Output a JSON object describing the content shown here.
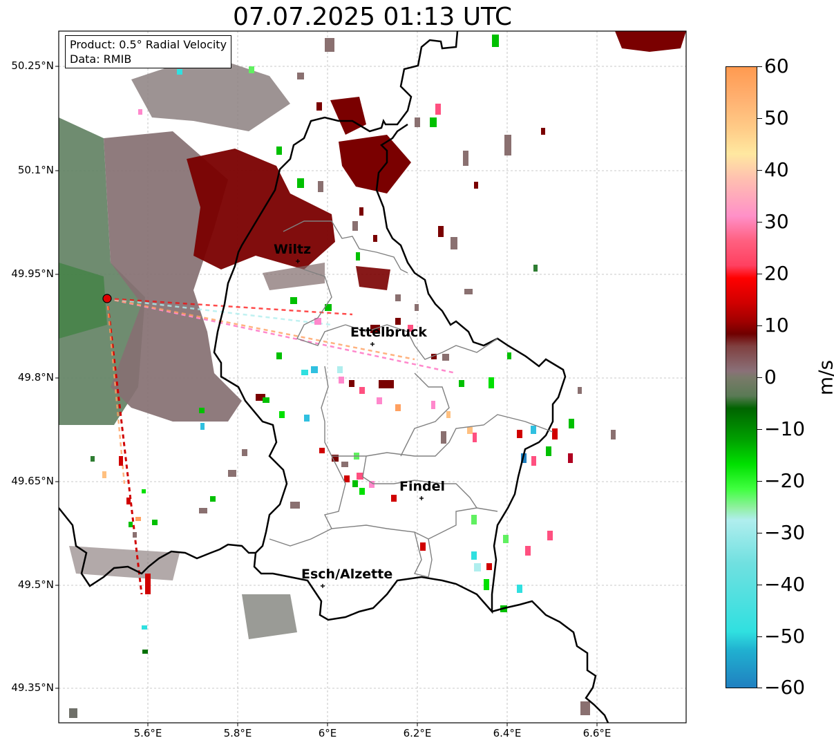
{
  "title": "07.07.2025 01:13 UTC",
  "info": {
    "product": "Product: 0.5° Radial Velocity",
    "data": "Data: RMIB"
  },
  "axes": {
    "lat_ticks": [
      "50.25°N",
      "50.1°N",
      "49.95°N",
      "49.8°N",
      "49.65°N",
      "49.5°N",
      "49.35°N"
    ],
    "lon_ticks": [
      "5.6°E",
      "5.8°E",
      "6°E",
      "6.2°E",
      "6.4°E",
      "6.6°E"
    ],
    "lat_values": [
      50.25,
      50.1,
      49.95,
      49.8,
      49.65,
      49.5,
      49.35
    ],
    "lon_values": [
      5.6,
      5.8,
      6.0,
      6.2,
      6.4,
      6.6
    ]
  },
  "cities": [
    {
      "name": "Wiltz"
    },
    {
      "name": "Ettelbruck"
    },
    {
      "name": "Findel"
    },
    {
      "name": "Esch/Alzette"
    }
  ],
  "colorbar": {
    "label": "m/s",
    "min": -60,
    "max": 60,
    "ticks": [
      "60",
      "50",
      "40",
      "30",
      "20",
      "10",
      "0",
      "−10",
      "−20",
      "−30",
      "−40",
      "−50",
      "−60"
    ]
  },
  "colors": {
    "approaching_dark": "#006400",
    "approaching_bright": "#00e000",
    "near_zero": "#8a7a7a",
    "receding_dark": "#7a0000",
    "receding_red": "#ff0000",
    "receding_pink": "#ff88cc",
    "receding_orange": "#ffa060",
    "approaching_cyan": "#30e0e0",
    "approaching_blue": "#2080c0",
    "border": "#000000",
    "canton_border": "#808080",
    "radar_site": "#e00000"
  }
}
